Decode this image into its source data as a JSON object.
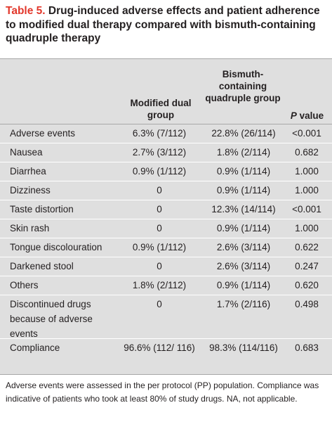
{
  "title": {
    "number": "Table 5.",
    "text": "Drug-induced adverse effects and patient adherence to modified dual therapy compared with bismuth-containing quadruple therapy"
  },
  "columns": {
    "label": "",
    "modified_dual": "Modified dual group",
    "bismuth": "Bismuth-containing quadruple group",
    "p_value_italic": "P",
    "p_value_rest": " value"
  },
  "rows": [
    {
      "label": "Adverse events",
      "modified_dual": "6.3% (7/112)",
      "bismuth": "22.8% (26/114)",
      "p": "<0.001"
    },
    {
      "label": "Nausea",
      "modified_dual": "2.7% (3/112)",
      "bismuth": "1.8% (2/114)",
      "p": "0.682"
    },
    {
      "label": "Diarrhea",
      "modified_dual": "0.9% (1/112)",
      "bismuth": "0.9% (1/114)",
      "p": "1.000"
    },
    {
      "label": "Dizziness",
      "modified_dual": "0",
      "bismuth": "0.9% (1/114)",
      "p": "1.000"
    },
    {
      "label": "Taste distortion",
      "modified_dual": "0",
      "bismuth": "12.3% (14/114)",
      "p": "<0.001"
    },
    {
      "label": "Skin rash",
      "modified_dual": "0",
      "bismuth": "0.9% (1/114)",
      "p": "1.000"
    },
    {
      "label": "Tongue discolouration",
      "modified_dual": "0.9% (1/112)",
      "bismuth": "2.6% (3/114)",
      "p": "0.622"
    },
    {
      "label": "Darkened stool",
      "modified_dual": "0",
      "bismuth": "2.6% (3/114)",
      "p": "0.247"
    },
    {
      "label": "Others",
      "modified_dual": "1.8% (2/112)",
      "bismuth": "0.9% (1/114)",
      "p": "0.620"
    },
    {
      "label": "Discontinued drugs because of adverse events",
      "modified_dual": "0",
      "bismuth": "1.7% (2/116)",
      "p": "0.498"
    },
    {
      "label": "Compliance",
      "modified_dual": "96.6% (112/ 116)",
      "bismuth": "98.3% (114/116)",
      "p": "0.683"
    }
  ],
  "footnote": "Adverse events were assessed in the per protocol (PP) population. Compliance was indicative of patients who took at least 80% of study drugs. NA, not applicable."
}
